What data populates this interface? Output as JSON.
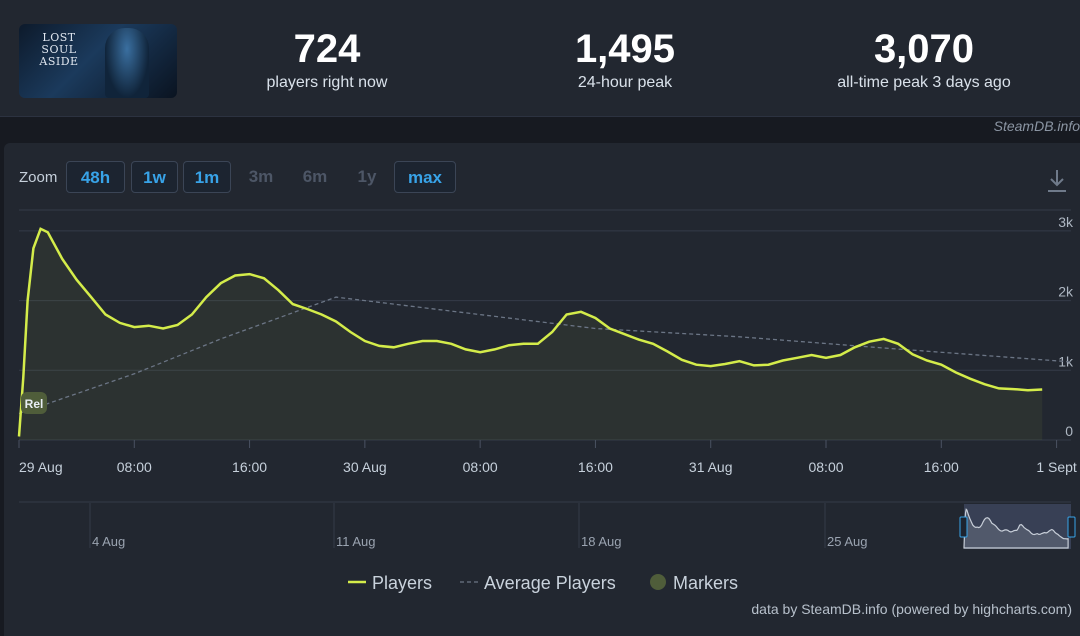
{
  "header": {
    "thumbnail_title": "LOST SOUL ASIDE",
    "stats": [
      {
        "value": "724",
        "label": "players right now"
      },
      {
        "value": "1,495",
        "label": "24-hour peak"
      },
      {
        "value": "3,070",
        "label": "all-time peak 3 days ago"
      }
    ]
  },
  "credit": "SteamDB.info",
  "toolbar": {
    "zoom_label": "Zoom",
    "buttons": [
      {
        "label": "48h",
        "active": true
      },
      {
        "label": "1w",
        "active": true
      },
      {
        "label": "1m",
        "active": true
      },
      {
        "label": "3m",
        "active": false
      },
      {
        "label": "6m",
        "active": false
      },
      {
        "label": "1y",
        "active": false
      },
      {
        "label": "max",
        "active": true
      }
    ],
    "download_icon": "download-icon"
  },
  "chart_data": {
    "type": "line",
    "x_tick_labels": [
      "29 Aug",
      "08:00",
      "16:00",
      "30 Aug",
      "08:00",
      "16:00",
      "31 Aug",
      "08:00",
      "16:00",
      "1 Sept"
    ],
    "y_tick_labels": [
      "0",
      "1k",
      "2k",
      "3k"
    ],
    "ylim": [
      0,
      3300
    ],
    "x_range_hours": [
      0,
      73
    ],
    "grid": true,
    "marker_label": "Rel",
    "series": [
      {
        "name": "Players",
        "color": "#d4ec4a",
        "points": [
          [
            0,
            50
          ],
          [
            0.3,
            900
          ],
          [
            0.6,
            2000
          ],
          [
            1,
            2750
          ],
          [
            1.5,
            3030
          ],
          [
            2,
            2980
          ],
          [
            3,
            2600
          ],
          [
            4,
            2300
          ],
          [
            5,
            2050
          ],
          [
            6,
            1800
          ],
          [
            7,
            1680
          ],
          [
            8,
            1620
          ],
          [
            9,
            1640
          ],
          [
            10,
            1600
          ],
          [
            11,
            1650
          ],
          [
            12,
            1800
          ],
          [
            13,
            2050
          ],
          [
            14,
            2250
          ],
          [
            15,
            2360
          ],
          [
            16,
            2380
          ],
          [
            17,
            2320
          ],
          [
            18,
            2150
          ],
          [
            19,
            1950
          ],
          [
            20,
            1880
          ],
          [
            21,
            1800
          ],
          [
            22,
            1700
          ],
          [
            23,
            1550
          ],
          [
            24,
            1420
          ],
          [
            25,
            1350
          ],
          [
            26,
            1330
          ],
          [
            27,
            1380
          ],
          [
            28,
            1420
          ],
          [
            29,
            1420
          ],
          [
            30,
            1380
          ],
          [
            31,
            1300
          ],
          [
            32,
            1260
          ],
          [
            33,
            1300
          ],
          [
            34,
            1360
          ],
          [
            35,
            1380
          ],
          [
            36,
            1380
          ],
          [
            37,
            1550
          ],
          [
            38,
            1800
          ],
          [
            39,
            1840
          ],
          [
            40,
            1750
          ],
          [
            41,
            1600
          ],
          [
            42,
            1520
          ],
          [
            43,
            1440
          ],
          [
            44,
            1380
          ],
          [
            45,
            1270
          ],
          [
            46,
            1150
          ],
          [
            47,
            1080
          ],
          [
            48,
            1060
          ],
          [
            49,
            1090
          ],
          [
            50,
            1130
          ],
          [
            51,
            1070
          ],
          [
            52,
            1080
          ],
          [
            53,
            1140
          ],
          [
            54,
            1180
          ],
          [
            55,
            1220
          ],
          [
            56,
            1180
          ],
          [
            57,
            1220
          ],
          [
            58,
            1330
          ],
          [
            59,
            1410
          ],
          [
            60,
            1450
          ],
          [
            61,
            1380
          ],
          [
            62,
            1230
          ],
          [
            63,
            1140
          ],
          [
            64,
            1080
          ],
          [
            65,
            970
          ],
          [
            66,
            880
          ],
          [
            67,
            800
          ],
          [
            68,
            740
          ],
          [
            69,
            730
          ],
          [
            70,
            715
          ],
          [
            71,
            724
          ]
        ]
      },
      {
        "name": "Average Players",
        "color": "#6b7585",
        "points": [
          [
            0,
            380
          ],
          [
            8,
            950
          ],
          [
            14,
            1450
          ],
          [
            22,
            2050
          ],
          [
            30,
            1850
          ],
          [
            40,
            1600
          ],
          [
            50,
            1480
          ],
          [
            60,
            1320
          ],
          [
            73,
            1120
          ]
        ]
      }
    ],
    "navigator": {
      "tick_labels": [
        "4 Aug",
        "11 Aug",
        "18 Aug",
        "25 Aug"
      ]
    },
    "legend": [
      {
        "label": "Players",
        "color": "#d4ec4a"
      },
      {
        "label": "Average Players",
        "color": "#6b7585"
      },
      {
        "label": "Markers",
        "color": "#4f5d3a"
      }
    ],
    "footer_credit": "data by SteamDB.info (powered by highcharts.com)"
  }
}
